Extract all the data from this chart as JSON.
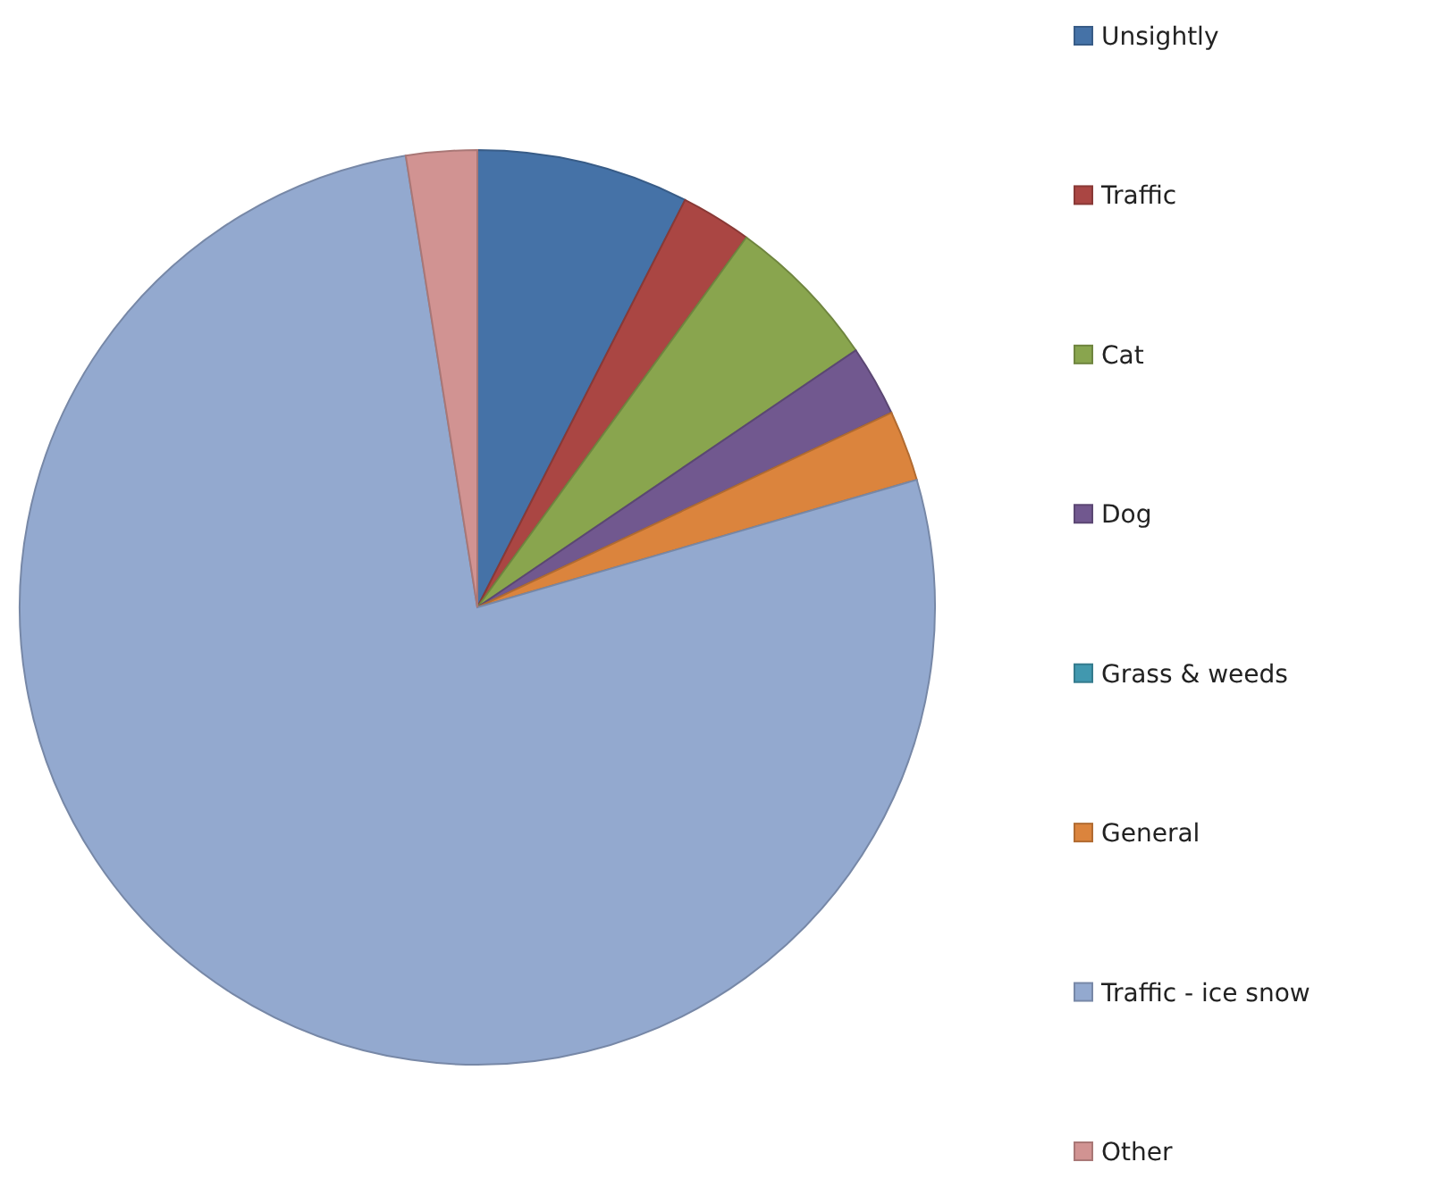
{
  "chart_data": {
    "type": "pie",
    "categories": [
      "Unsightly",
      "Traffic",
      "Cat",
      "Dog",
      "Grass & weeds",
      "General",
      "Traffic - ice snow",
      "Other"
    ],
    "values": [
      7.5,
      2.5,
      5.5,
      2.5,
      0,
      2.5,
      77,
      2.5
    ],
    "colors": [
      "#4572a7",
      "#aa4643",
      "#89a54e",
      "#71588f",
      "#4198af",
      "#db843d",
      "#93a9cf",
      "#d19392"
    ],
    "legend": "right"
  }
}
